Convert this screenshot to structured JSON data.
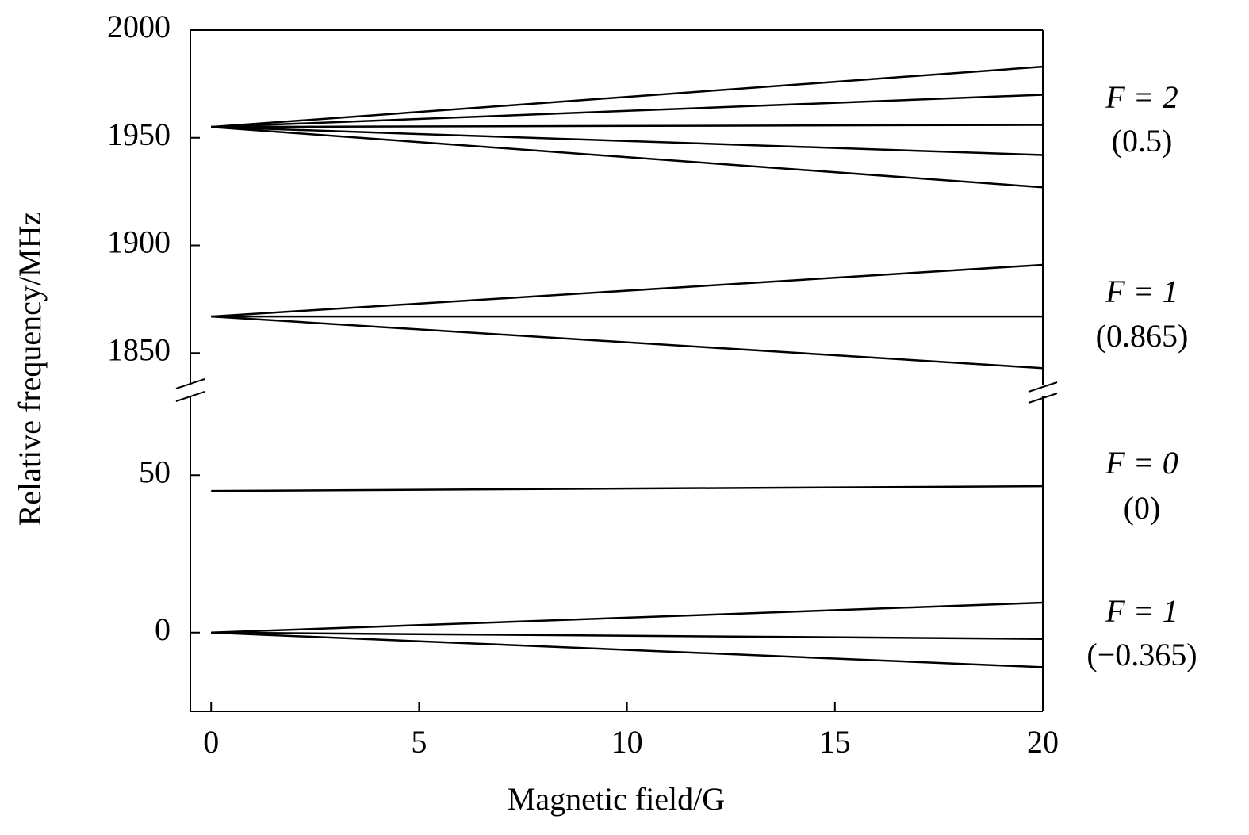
{
  "chart_data": [
    {
      "type": "line",
      "color": "#000000",
      "ylabel": "Relative frequency/MHz",
      "ylim": [
        1835,
        2000
      ],
      "yticks": [
        1850,
        1900,
        1950,
        2000
      ],
      "x": [
        0,
        20
      ],
      "series": [
        {
          "values": [
            1955,
            1983
          ]
        },
        {
          "values": [
            1955,
            1970
          ]
        },
        {
          "values": [
            1955,
            1956
          ]
        },
        {
          "values": [
            1955,
            1942
          ]
        },
        {
          "values": [
            1955,
            1927
          ]
        },
        {
          "values": [
            1867,
            1891
          ]
        },
        {
          "values": [
            1867,
            1867
          ]
        },
        {
          "values": [
            1867,
            1843
          ]
        }
      ],
      "annotations": [
        "F = 2",
        "(0.5)",
        "F = 1",
        "(0.865)"
      ]
    },
    {
      "type": "line",
      "color": "#000000",
      "xlabel": "Magnetic field/G",
      "xlim": [
        -0.5,
        20
      ],
      "xticks": [
        0,
        5,
        10,
        15,
        20
      ],
      "ylim": [
        -25,
        75
      ],
      "yticks": [
        0,
        50
      ],
      "x": [
        0,
        20
      ],
      "series": [
        {
          "values": [
            45,
            46.5
          ]
        },
        {
          "values": [
            0,
            9.5
          ]
        },
        {
          "values": [
            0,
            -2
          ]
        },
        {
          "values": [
            0,
            -11
          ]
        }
      ],
      "annotations": [
        "F = 0",
        "(0)",
        "F = 1",
        "(−0.365)"
      ]
    }
  ]
}
